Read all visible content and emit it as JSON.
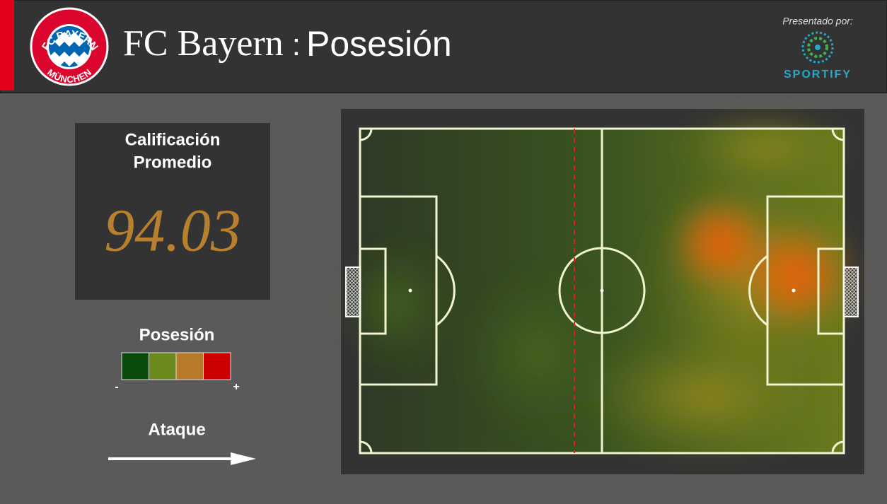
{
  "header": {
    "team": "FC Bayern",
    "separator": ":",
    "metric": "Posesión",
    "sponsor_label": "Presentado por:",
    "sponsor": "SPORTIFY",
    "logo_top": "FC BAYERN",
    "logo_bottom": "MÜNCHEN"
  },
  "rating": {
    "title_lines": [
      "Calificación",
      "Promedio"
    ],
    "value": "94.03"
  },
  "legend": {
    "title": "Posesión",
    "colors": [
      "#0a4a0a",
      "#6b8a1e",
      "#b87a2a",
      "#cc0000"
    ],
    "low": "-",
    "high": "+"
  },
  "direction": {
    "label": "Ataque"
  }
}
